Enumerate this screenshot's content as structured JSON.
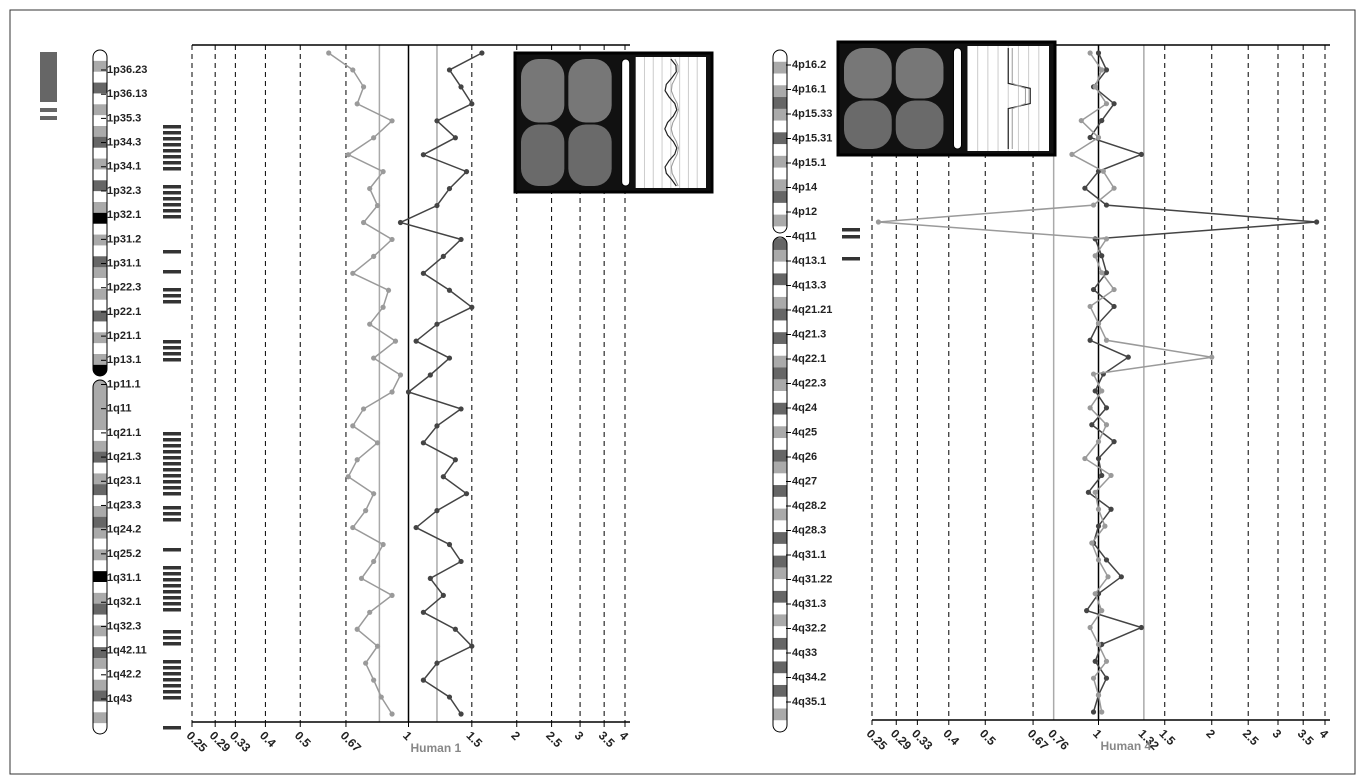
{
  "chart_data": [
    {
      "type": "line",
      "xlabel": "Human 1",
      "xscale": "log",
      "xlim": [
        0.25,
        4
      ],
      "xticks": [
        0.25,
        0.29,
        0.33,
        0.4,
        0.5,
        0.67,
        1,
        1.5,
        2,
        2.5,
        3,
        3.5,
        4
      ],
      "grid": true,
      "thresholds": [
        0.83,
        1.2
      ],
      "threshold_labels": false,
      "band_labels": [
        "1p36.23",
        "1p36.13",
        "1p35.3",
        "1p34.3",
        "1p34.1",
        "1p32.3",
        "1p32.1",
        "1p31.2",
        "1p31.1",
        "1p22.3",
        "1p22.1",
        "1p21.1",
        "1p13.1",
        "1p11.1",
        "1q11",
        "1q21.1",
        "1q21.3",
        "1q23.1",
        "1q23.3",
        "1q24.2",
        "1q25.2",
        "1q31.1",
        "1q32.1",
        "1q32.3",
        "1q42.11",
        "1q42.2",
        "1q43"
      ],
      "series": [
        {
          "color": "#444444",
          "values": [
            1.6,
            1.3,
            1.4,
            1.5,
            1.2,
            1.35,
            1.1,
            1.45,
            1.3,
            1.2,
            0.95,
            1.4,
            1.25,
            1.1,
            1.3,
            1.5,
            1.2,
            1.05,
            1.3,
            1.15,
            1.0,
            1.4,
            1.2,
            1.1,
            1.35,
            1.25,
            1.45,
            1.2,
            1.05,
            1.3,
            1.4,
            1.15,
            1.25,
            1.1,
            1.35,
            1.5,
            1.2,
            1.1,
            1.3,
            1.4
          ]
        },
        {
          "color": "#9a9a9a",
          "values": [
            0.6,
            0.7,
            0.75,
            0.72,
            0.9,
            0.8,
            0.68,
            0.85,
            0.78,
            0.82,
            0.75,
            0.9,
            0.8,
            0.7,
            0.88,
            0.85,
            0.78,
            0.92,
            0.8,
            0.95,
            0.9,
            0.75,
            0.7,
            0.82,
            0.72,
            0.68,
            0.8,
            0.76,
            0.7,
            0.85,
            0.8,
            0.74,
            0.9,
            0.78,
            0.72,
            0.82,
            0.76,
            0.8,
            0.84,
            0.9
          ]
        }
      ]
    },
    {
      "type": "line",
      "xlabel": "Human 4",
      "xscale": "log",
      "xlim": [
        0.25,
        4
      ],
      "xticks": [
        0.25,
        0.29,
        0.33,
        0.4,
        0.5,
        0.67,
        1,
        1.5,
        2,
        2.5,
        3,
        3.5,
        4
      ],
      "grid": true,
      "thresholds": [
        0.76,
        1.32
      ],
      "threshold_labels": true,
      "band_labels": [
        "4p16.2",
        "4p16.1",
        "4p15.33",
        "4p15.31",
        "4p15.1",
        "4p14",
        "4p12",
        "4q11",
        "4q13.1",
        "4q13.3",
        "4q21.21",
        "4q21.3",
        "4q22.1",
        "4q22.3",
        "4q24",
        "4q25",
        "4q26",
        "4q27",
        "4q28.2",
        "4q28.3",
        "4q31.1",
        "4q31.22",
        "4q31.3",
        "4q32.2",
        "4q33",
        "4q34.2",
        "4q35.1"
      ],
      "series": [
        {
          "color": "#444444",
          "values": [
            1.0,
            1.05,
            0.97,
            1.1,
            1.02,
            0.95,
            1.3,
            1.0,
            0.92,
            1.05,
            3.8,
            0.98,
            1.02,
            1.05,
            0.97,
            1.1,
            1.0,
            0.95,
            1.2,
            1.03,
            0.98,
            1.05,
            0.96,
            1.1,
            1.0,
            1.02,
            0.94,
            1.08,
            1.0,
            0.97,
            1.05,
            1.15,
            1.0,
            0.93,
            1.3,
            1.02,
            0.98,
            1.05,
            1.0,
            0.97
          ]
        },
        {
          "color": "#9a9a9a",
          "values": [
            0.95,
            1.02,
            0.98,
            1.05,
            0.9,
            1.0,
            0.85,
            1.03,
            1.1,
            0.97,
            0.26,
            1.05,
            0.98,
            1.02,
            1.1,
            0.95,
            1.0,
            1.05,
            2.0,
            0.97,
            1.02,
            0.95,
            1.05,
            1.0,
            0.92,
            1.08,
            0.98,
            1.0,
            1.04,
            0.96,
            1.0,
            1.06,
            0.98,
            1.02,
            0.95,
            1.0,
            1.05,
            0.97,
            1.0,
            1.02
          ]
        }
      ]
    }
  ]
}
